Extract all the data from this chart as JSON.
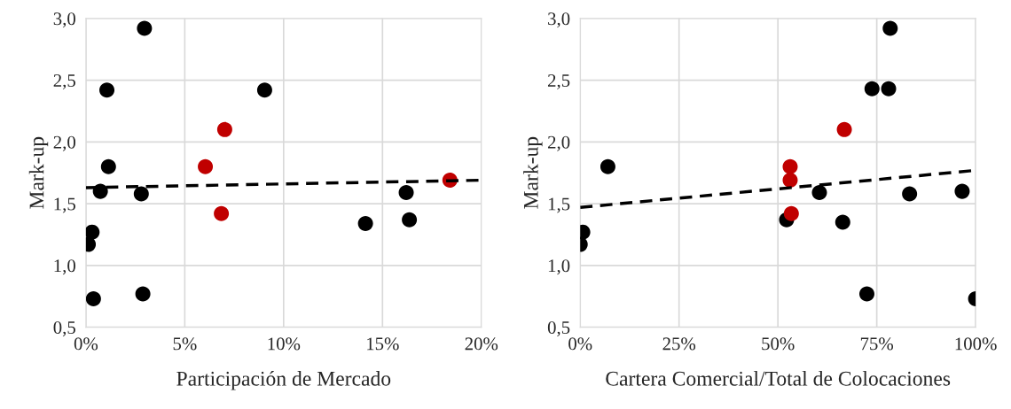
{
  "chart_data": [
    {
      "type": "scatter",
      "xlabel": "Participación de Mercado",
      "ylabel": "Mark-up",
      "xlim": [
        0,
        20
      ],
      "xticks": [
        {
          "value": 0,
          "label": "0%"
        },
        {
          "value": 5,
          "label": "5%"
        },
        {
          "value": 10,
          "label": "10%"
        },
        {
          "value": 15,
          "label": "15%"
        },
        {
          "value": 20,
          "label": "20%"
        }
      ],
      "ylim": [
        0.5,
        3.0
      ],
      "yticks": [
        {
          "value": 0.5,
          "label": "0,5"
        },
        {
          "value": 1.0,
          "label": "1,0"
        },
        {
          "value": 1.5,
          "label": "1,5"
        },
        {
          "value": 2.0,
          "label": "2,0"
        },
        {
          "value": 2.5,
          "label": "2,5"
        },
        {
          "value": 3.0,
          "label": "3,0"
        }
      ],
      "grid": true,
      "marker": "circle",
      "series": [
        {
          "color": "#000000",
          "x": [
            2.96,
            1.06,
            9.04,
            1.14,
            0.73,
            2.8,
            16.2,
            16.36,
            14.14,
            0.31,
            0.12,
            0.38,
            2.88
          ],
          "values": [
            2.92,
            2.42,
            2.42,
            1.8,
            1.6,
            1.58,
            1.59,
            1.37,
            1.34,
            1.27,
            1.17,
            0.73,
            0.77
          ]
        },
        {
          "color": "#c00000",
          "x": [
            7.02,
            6.04,
            6.85,
            18.41
          ],
          "values": [
            2.1,
            1.8,
            1.42,
            1.69
          ]
        },
        {
          "type": "line",
          "color": "#000000",
          "line_style": "dashed",
          "marker": "none",
          "x": [
            0,
            20
          ],
          "values": [
            1.63,
            1.69
          ]
        }
      ]
    },
    {
      "type": "scatter",
      "xlabel": "Cartera Comercial/Total de Colocaciones",
      "ylabel": "Mark-up",
      "xlim": [
        0,
        100
      ],
      "xticks": [
        {
          "value": 0,
          "label": "0%"
        },
        {
          "value": 25,
          "label": "25%"
        },
        {
          "value": 50,
          "label": "50%"
        },
        {
          "value": 75,
          "label": "75%"
        },
        {
          "value": 100,
          "label": "100%"
        }
      ],
      "ylim": [
        0.5,
        3.0
      ],
      "yticks": [
        {
          "value": 0.5,
          "label": "0,5"
        },
        {
          "value": 1.0,
          "label": "1,0"
        },
        {
          "value": 1.5,
          "label": "1,5"
        },
        {
          "value": 2.0,
          "label": "2,0"
        },
        {
          "value": 2.5,
          "label": "2,5"
        },
        {
          "value": 3.0,
          "label": "3,0"
        }
      ],
      "grid": true,
      "marker": "circle",
      "series": [
        {
          "color": "#000000",
          "x": [
            78.4,
            73.8,
            78.0,
            7.0,
            60.5,
            83.3,
            96.6,
            52.2,
            66.4,
            0.65,
            0,
            72.5,
            100
          ],
          "values": [
            2.92,
            2.43,
            2.43,
            1.8,
            1.59,
            1.58,
            1.6,
            1.37,
            1.35,
            1.27,
            1.17,
            0.77,
            0.73
          ]
        },
        {
          "color": "#c00000",
          "x": [
            66.8,
            53.1,
            53.1,
            53.4
          ],
          "values": [
            2.1,
            1.8,
            1.69,
            1.42
          ]
        },
        {
          "type": "line",
          "color": "#000000",
          "line_style": "dashed",
          "marker": "none",
          "x": [
            0,
            100
          ],
          "values": [
            1.47,
            1.77
          ]
        }
      ]
    }
  ]
}
